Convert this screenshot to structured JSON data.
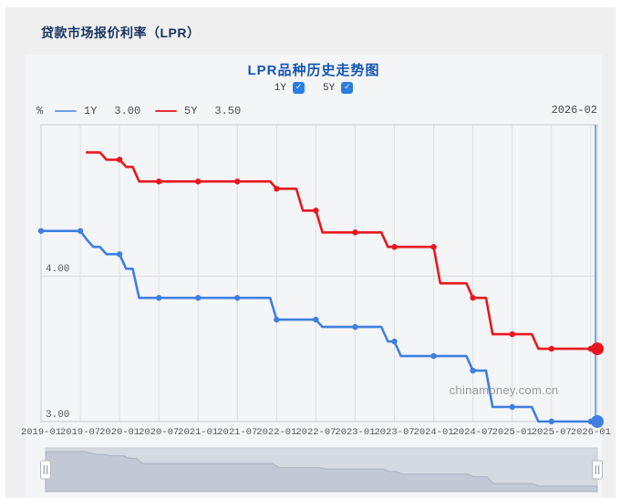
{
  "page": {
    "title": "贷款市场报价利率（LPR）"
  },
  "chart": {
    "title": "LPR品种历史走势图",
    "check_icon": "✓",
    "series_toggles": [
      {
        "label": "1Y",
        "checked": true
      },
      {
        "label": "5Y",
        "checked": true
      }
    ],
    "unit_label": "%",
    "legend": [
      {
        "name": "1Y",
        "value": "3.00",
        "color": "#3e7fe0"
      },
      {
        "name": "5Y",
        "value": "3.50",
        "color": "#e8171e"
      }
    ],
    "pointer_label": "2026-02",
    "watermark": "chinamoney.com.cn"
  },
  "chart_data": {
    "type": "line",
    "title": "LPR品种历史走势图",
    "xlabel": "",
    "ylabel": "%",
    "x_start": "2019-01",
    "x_end": "2026-02",
    "x_tick_labels": [
      "2019-01",
      "2019-07",
      "2020-01",
      "2020-07",
      "2021-01",
      "2021-07",
      "2022-01",
      "2022-07",
      "2023-01",
      "2023-07",
      "2024-01",
      "2024-07",
      "2025-01",
      "2025-07",
      "2026-01"
    ],
    "y_ticks": [
      4.0,
      3.0
    ],
    "y_tick_labels": [
      "4.00",
      "3.00"
    ],
    "ylim": [
      3.0,
      5.04
    ],
    "grid": true,
    "legend_position": "top-left",
    "axis_pointer": {
      "label": "2026-02",
      "color": "#74abe8"
    },
    "series": [
      {
        "name": "1Y",
        "color": "#3e7fe0",
        "latest": 3.0,
        "values": [
          4.31,
          4.31,
          4.31,
          4.31,
          4.31,
          4.31,
          4.31,
          4.25,
          4.2,
          4.2,
          4.15,
          4.15,
          4.15,
          4.05,
          4.05,
          3.85,
          3.85,
          3.85,
          3.85,
          3.85,
          3.85,
          3.85,
          3.85,
          3.85,
          3.85,
          3.85,
          3.85,
          3.85,
          3.85,
          3.85,
          3.85,
          3.85,
          3.85,
          3.85,
          3.85,
          3.85,
          3.7,
          3.7,
          3.7,
          3.7,
          3.7,
          3.7,
          3.7,
          3.65,
          3.65,
          3.65,
          3.65,
          3.65,
          3.65,
          3.65,
          3.65,
          3.65,
          3.65,
          3.55,
          3.55,
          3.45,
          3.45,
          3.45,
          3.45,
          3.45,
          3.45,
          3.45,
          3.45,
          3.45,
          3.45,
          3.45,
          3.35,
          3.35,
          3.35,
          3.1,
          3.1,
          3.1,
          3.1,
          3.1,
          3.1,
          3.1,
          3.0,
          3.0,
          3.0,
          3.0,
          3.0,
          3.0,
          3.0,
          3.0,
          3.0,
          3.0
        ]
      },
      {
        "name": "5Y",
        "color": "#e8171e",
        "latest": 3.5,
        "values": [
          null,
          null,
          null,
          null,
          null,
          null,
          null,
          4.85,
          4.85,
          4.85,
          4.8,
          4.8,
          4.8,
          4.75,
          4.75,
          4.65,
          4.65,
          4.65,
          4.65,
          4.65,
          4.65,
          4.65,
          4.65,
          4.65,
          4.65,
          4.65,
          4.65,
          4.65,
          4.65,
          4.65,
          4.65,
          4.65,
          4.65,
          4.65,
          4.65,
          4.65,
          4.6,
          4.6,
          4.6,
          4.6,
          4.45,
          4.45,
          4.45,
          4.3,
          4.3,
          4.3,
          4.3,
          4.3,
          4.3,
          4.3,
          4.3,
          4.3,
          4.3,
          4.2,
          4.2,
          4.2,
          4.2,
          4.2,
          4.2,
          4.2,
          4.2,
          3.95,
          3.95,
          3.95,
          3.95,
          3.95,
          3.85,
          3.85,
          3.85,
          3.6,
          3.6,
          3.6,
          3.6,
          3.6,
          3.6,
          3.6,
          3.5,
          3.5,
          3.5,
          3.5,
          3.5,
          3.5,
          3.5,
          3.5,
          3.5,
          3.5
        ]
      }
    ],
    "slider": {
      "range_start_label": "2019-01",
      "range_end_label": "2026-02"
    }
  }
}
